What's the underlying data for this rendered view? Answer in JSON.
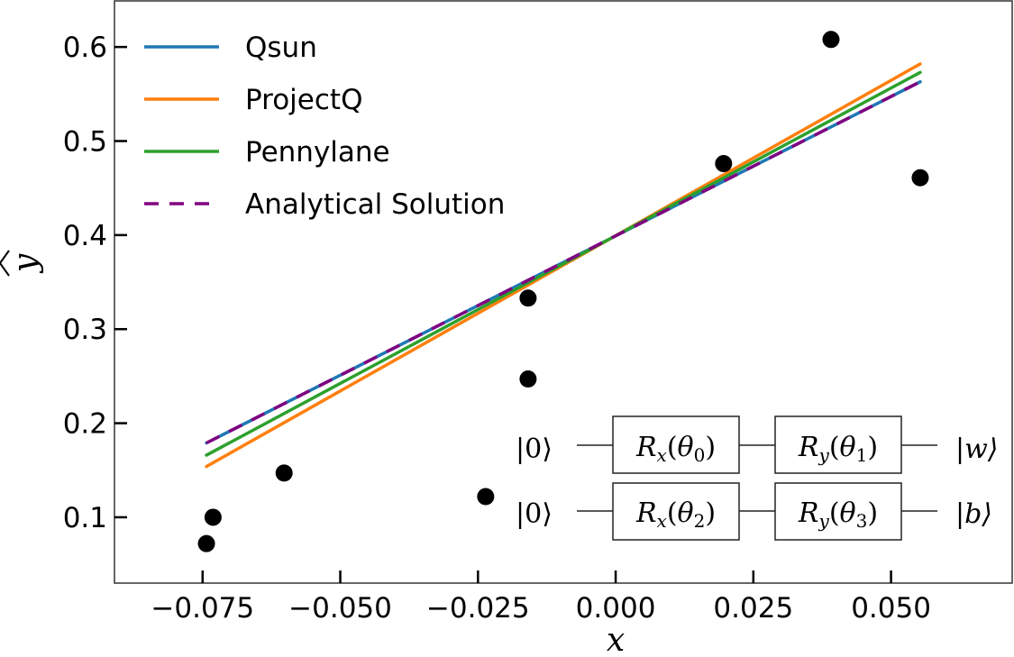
{
  "chart_data": {
    "type": "scatter",
    "title": "",
    "xlabel": "x",
    "ylabel": "ŷ",
    "xlim": [
      -0.091,
      0.072
    ],
    "ylim": [
      0.03,
      0.649
    ],
    "grid": false,
    "legend_position": "upper left",
    "x_ticks": [
      -0.075,
      -0.05,
      -0.025,
      0.0,
      0.025,
      0.05
    ],
    "x_tick_labels": [
      "−0.075",
      "−0.050",
      "−0.025",
      "0.000",
      "0.025",
      "0.050"
    ],
    "y_ticks": [
      0.1,
      0.2,
      0.3,
      0.4,
      0.5,
      0.6
    ],
    "y_tick_labels": [
      "0.1",
      "0.2",
      "0.3",
      "0.4",
      "0.5",
      "0.6"
    ],
    "scatter": {
      "name": "data",
      "color": "#000000",
      "points": [
        {
          "x": -0.0743,
          "y": 0.072
        },
        {
          "x": -0.0731,
          "y": 0.1
        },
        {
          "x": -0.0602,
          "y": 0.147
        },
        {
          "x": -0.0236,
          "y": 0.122
        },
        {
          "x": -0.0159,
          "y": 0.247
        },
        {
          "x": -0.0159,
          "y": 0.333
        },
        {
          "x": 0.0196,
          "y": 0.476
        },
        {
          "x": 0.0391,
          "y": 0.608
        },
        {
          "x": 0.0553,
          "y": 0.461
        }
      ]
    },
    "series": [
      {
        "name": "Qsun",
        "type": "line",
        "color": "#1f77b4",
        "dash": "",
        "x": [
          -0.0743,
          0.0553
        ],
        "y": [
          0.179,
          0.563
        ]
      },
      {
        "name": "ProjectQ",
        "type": "line",
        "color": "#ff7f0e",
        "dash": "",
        "x": [
          -0.0743,
          0.0553
        ],
        "y": [
          0.154,
          0.582
        ]
      },
      {
        "name": "Pennylane",
        "type": "line",
        "color": "#2ca02c",
        "dash": "",
        "x": [
          -0.0743,
          0.0553
        ],
        "y": [
          0.166,
          0.573
        ]
      },
      {
        "name": "Analytical Solution",
        "type": "line",
        "color": "#800080",
        "dash": "16 12",
        "x": [
          -0.0743,
          0.0553
        ],
        "y": [
          0.179,
          0.563
        ]
      }
    ],
    "annotations": {
      "circuit_inset": {
        "rows": [
          {
            "input": "|0⟩",
            "gates": [
              "Rx(θ0)",
              "Ry(θ1)"
            ],
            "output": "|w⟩"
          },
          {
            "input": "|0⟩",
            "gates": [
              "Rx(θ2)",
              "Ry(θ3)"
            ],
            "output": "|b⟩"
          }
        ]
      }
    }
  },
  "legend": {
    "items": [
      {
        "label": "Qsun"
      },
      {
        "label": "ProjectQ"
      },
      {
        "label": "Pennylane"
      },
      {
        "label": "Analytical Solution"
      }
    ]
  },
  "axes": {
    "xlabel": "x",
    "ylabel": "y"
  },
  "circuit": {
    "row0": {
      "input": "|0⟩",
      "gate1_main": "R",
      "gate1_sub": "x",
      "gate1_arg": "(θ",
      "gate1_idx": "0",
      "gate2_main": "R",
      "gate2_sub": "y",
      "gate2_idx": "1",
      "output": "|w⟩"
    },
    "row1": {
      "input": "|0⟩",
      "gate1_main": "R",
      "gate1_sub": "x",
      "gate1_idx": "2",
      "gate2_main": "R",
      "gate2_sub": "y",
      "gate2_idx": "3",
      "output": "|b⟩"
    }
  }
}
